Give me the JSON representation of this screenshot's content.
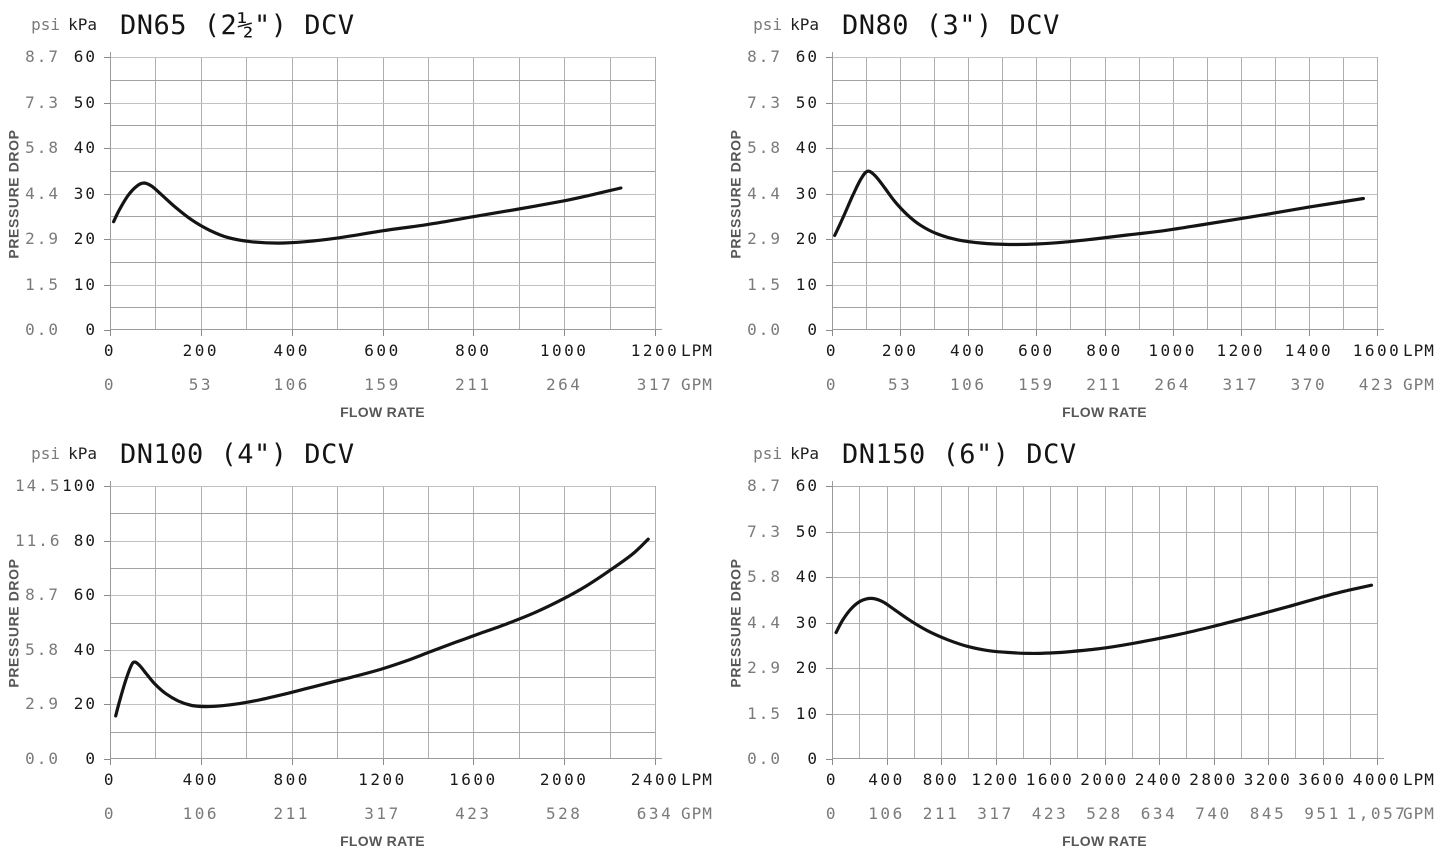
{
  "style": {
    "background": "#ffffff",
    "curve_color": "#141414",
    "grid_major": "#c2c2c2",
    "grid_minor": "#a2a2a2",
    "grid_mid": "#b0b0b0",
    "grid_vertical": "#aeaeae",
    "axis_line": "#9b9b9b",
    "tick_stub": "#8a8a8a",
    "primary_text": "#1a1a1a",
    "secondary_text": "#7a7a7a",
    "axis_title_text": "#575757"
  },
  "chart_data": [
    {
      "id": "DN65",
      "type": "line",
      "title": "DN65 (2½\") DCV",
      "y_axis": {
        "title": "PRESSURE DROP",
        "secondary_unit": "psi",
        "primary_unit": "kPa",
        "kpa_max": 60,
        "kpa_grid_step": 5,
        "kpa_label_step": 10,
        "kpa_ticks": [
          "60",
          "50",
          "40",
          "30",
          "20",
          "10",
          "0"
        ],
        "psi_ticks": [
          "8.7",
          "7.3",
          "5.8",
          "4.4",
          "2.9",
          "1.5",
          "0.0"
        ]
      },
      "x_axis": {
        "title": "FLOW RATE",
        "primary_unit": "LPM",
        "secondary_unit": "GPM",
        "lpm_max": 1200,
        "lpm_grid_step": 100,
        "lpm_label_step": 200,
        "lpm_ticks": [
          "0",
          "200",
          "400",
          "600",
          "800",
          "1000",
          "1200"
        ],
        "gpm_ticks": [
          "0",
          "53",
          "106",
          "159",
          "211",
          "264",
          "317"
        ]
      },
      "curve_lpm_kpa": [
        [
          8,
          23.8
        ],
        [
          20,
          26.3
        ],
        [
          40,
          29.6
        ],
        [
          60,
          31.7
        ],
        [
          75,
          32.3
        ],
        [
          92,
          31.6
        ],
        [
          115,
          29.6
        ],
        [
          145,
          26.9
        ],
        [
          180,
          24.2
        ],
        [
          220,
          21.9
        ],
        [
          260,
          20.3
        ],
        [
          310,
          19.4
        ],
        [
          370,
          19.1
        ],
        [
          430,
          19.4
        ],
        [
          500,
          20.2
        ],
        [
          600,
          21.8
        ],
        [
          700,
          23.2
        ],
        [
          800,
          24.9
        ],
        [
          900,
          26.6
        ],
        [
          1000,
          28.4
        ],
        [
          1060,
          29.7
        ],
        [
          1125,
          31.2
        ]
      ]
    },
    {
      "id": "DN80",
      "type": "line",
      "title": "DN80 (3\") DCV",
      "y_axis": {
        "title": "PRESSURE DROP",
        "secondary_unit": "psi",
        "primary_unit": "kPa",
        "kpa_max": 60,
        "kpa_grid_step": 5,
        "kpa_label_step": 10,
        "kpa_ticks": [
          "60",
          "50",
          "40",
          "30",
          "20",
          "10",
          "0"
        ],
        "psi_ticks": [
          "8.7",
          "7.3",
          "5.8",
          "4.4",
          "2.9",
          "1.5",
          "0.0"
        ]
      },
      "x_axis": {
        "title": "FLOW RATE",
        "primary_unit": "LPM",
        "secondary_unit": "GPM",
        "lpm_max": 1600,
        "lpm_grid_step": 100,
        "lpm_label_step": 200,
        "lpm_ticks": [
          "0",
          "200",
          "400",
          "600",
          "800",
          "1000",
          "1200",
          "1400",
          "1600"
        ],
        "gpm_ticks": [
          "0",
          "53",
          "106",
          "159",
          "211",
          "264",
          "317",
          "370",
          "423"
        ]
      },
      "curve_lpm_kpa": [
        [
          8,
          20.8
        ],
        [
          30,
          24.3
        ],
        [
          60,
          29.4
        ],
        [
          85,
          33.2
        ],
        [
          105,
          34.9
        ],
        [
          128,
          33.8
        ],
        [
          155,
          31.2
        ],
        [
          185,
          28.2
        ],
        [
          220,
          25.4
        ],
        [
          260,
          23.0
        ],
        [
          310,
          21.1
        ],
        [
          370,
          19.8
        ],
        [
          440,
          19.1
        ],
        [
          520,
          18.8
        ],
        [
          600,
          18.9
        ],
        [
          680,
          19.3
        ],
        [
          770,
          20.0
        ],
        [
          870,
          20.9
        ],
        [
          980,
          21.9
        ],
        [
          1100,
          23.3
        ],
        [
          1250,
          25.1
        ],
        [
          1400,
          27.0
        ],
        [
          1560,
          28.9
        ]
      ]
    },
    {
      "id": "DN100",
      "type": "line",
      "title": "DN100 (4\") DCV",
      "y_axis": {
        "title": "PRESSURE DROP",
        "secondary_unit": "psi",
        "primary_unit": "kPa",
        "kpa_max": 100,
        "kpa_grid_step": 10,
        "kpa_label_step": 20,
        "kpa_ticks": [
          "100",
          "80",
          "60",
          "40",
          "20",
          "0"
        ],
        "psi_ticks": [
          "14.5",
          "11.6",
          "8.7",
          "5.8",
          "2.9",
          "0.0"
        ]
      },
      "x_axis": {
        "title": "FLOW RATE",
        "primary_unit": "LPM",
        "secondary_unit": "GPM",
        "lpm_max": 2400,
        "lpm_grid_step": 200,
        "lpm_label_step": 400,
        "lpm_ticks": [
          "0",
          "400",
          "800",
          "1200",
          "1600",
          "2000",
          "2400"
        ],
        "gpm_ticks": [
          "0",
          "106",
          "211",
          "317",
          "423",
          "528",
          "634"
        ]
      },
      "curve_lpm_kpa": [
        [
          25,
          15.8
        ],
        [
          45,
          22.0
        ],
        [
          70,
          29.0
        ],
        [
          95,
          34.5
        ],
        [
          110,
          35.5
        ],
        [
          130,
          34.3
        ],
        [
          165,
          30.7
        ],
        [
          200,
          27.3
        ],
        [
          245,
          24.0
        ],
        [
          300,
          21.3
        ],
        [
          360,
          19.6
        ],
        [
          420,
          19.2
        ],
        [
          490,
          19.5
        ],
        [
          570,
          20.3
        ],
        [
          660,
          21.7
        ],
        [
          760,
          23.6
        ],
        [
          860,
          25.7
        ],
        [
          960,
          27.8
        ],
        [
          1070,
          30.1
        ],
        [
          1190,
          32.8
        ],
        [
          1300,
          35.8
        ],
        [
          1410,
          39.3
        ],
        [
          1520,
          42.7
        ],
        [
          1630,
          46.0
        ],
        [
          1750,
          49.6
        ],
        [
          1870,
          53.6
        ],
        [
          1990,
          58.4
        ],
        [
          2100,
          63.5
        ],
        [
          2200,
          69.0
        ],
        [
          2300,
          75.0
        ],
        [
          2370,
          80.5
        ]
      ]
    },
    {
      "id": "DN150",
      "type": "line",
      "title": "DN150 (6\") DCV",
      "y_axis": {
        "title": "PRESSURE DROP",
        "secondary_unit": "psi",
        "primary_unit": "kPa",
        "kpa_max": 60,
        "kpa_grid_step": 10,
        "kpa_label_step": 10,
        "kpa_ticks": [
          "60",
          "50",
          "40",
          "30",
          "20",
          "10",
          "0"
        ],
        "psi_ticks": [
          "8.7",
          "7.3",
          "5.8",
          "4.4",
          "2.9",
          "1.5",
          "0.0"
        ]
      },
      "x_axis": {
        "title": "FLOW RATE",
        "primary_unit": "LPM",
        "secondary_unit": "GPM",
        "lpm_max": 4000,
        "lpm_grid_step": 200,
        "lpm_label_step": 400,
        "lpm_ticks": [
          "0",
          "400",
          "800",
          "1200",
          "1600",
          "2000",
          "2400",
          "2800",
          "3200",
          "3600",
          "4000"
        ],
        "gpm_ticks": [
          "0",
          "106",
          "211",
          "317",
          "423",
          "528",
          "634",
          "740",
          "845",
          "951",
          "1,057"
        ]
      },
      "curve_lpm_kpa": [
        [
          30,
          27.8
        ],
        [
          80,
          30.6
        ],
        [
          140,
          33.0
        ],
        [
          210,
          34.7
        ],
        [
          290,
          35.3
        ],
        [
          370,
          34.6
        ],
        [
          460,
          32.8
        ],
        [
          570,
          30.5
        ],
        [
          700,
          28.2
        ],
        [
          850,
          26.2
        ],
        [
          1000,
          24.7
        ],
        [
          1150,
          23.8
        ],
        [
          1300,
          23.4
        ],
        [
          1450,
          23.2
        ],
        [
          1600,
          23.3
        ],
        [
          1750,
          23.6
        ],
        [
          1950,
          24.2
        ],
        [
          2150,
          25.1
        ],
        [
          2350,
          26.2
        ],
        [
          2550,
          27.4
        ],
        [
          2750,
          28.8
        ],
        [
          2950,
          30.3
        ],
        [
          3150,
          31.9
        ],
        [
          3350,
          33.5
        ],
        [
          3550,
          35.2
        ],
        [
          3750,
          36.8
        ],
        [
          3960,
          38.2
        ]
      ]
    }
  ]
}
